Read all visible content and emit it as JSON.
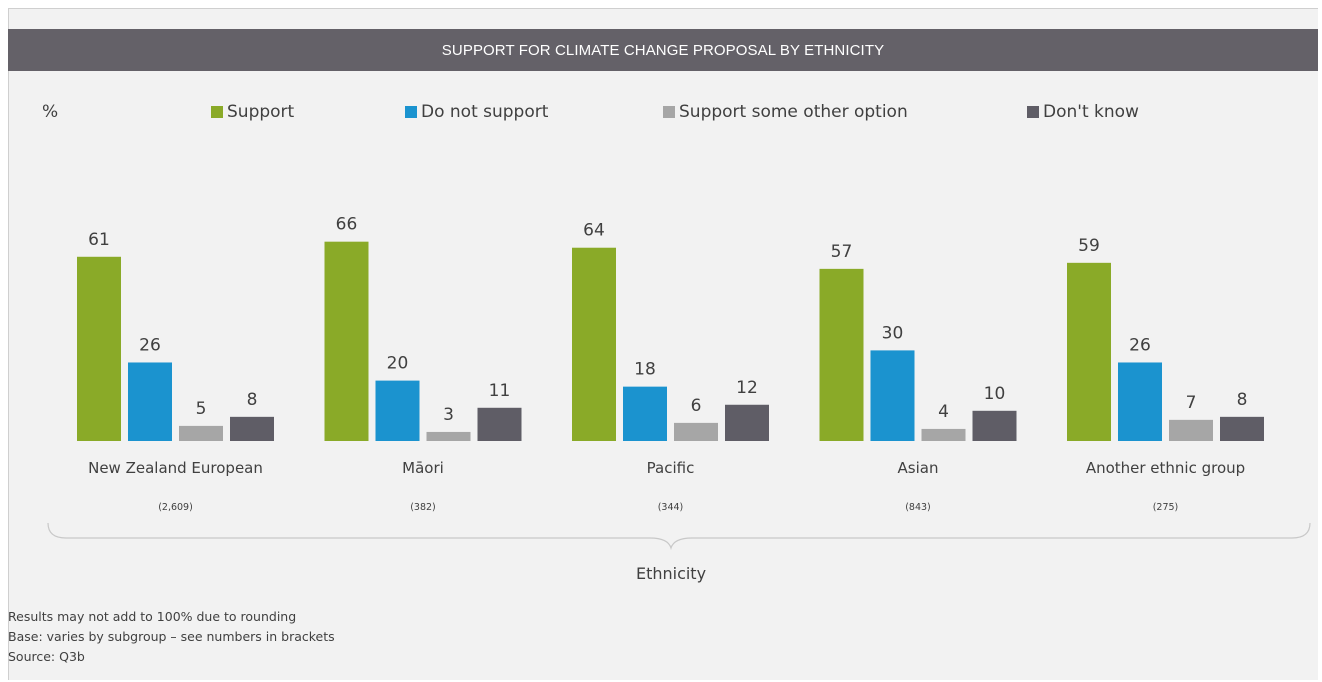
{
  "title": "SUPPORT FOR CLIMATE CHANGE PROPOSAL BY ETHNICITY",
  "unit_label": "%",
  "colors": {
    "support": "#8aaa28",
    "do_not_support": "#1b93cf",
    "other_option": "#a6a6a6",
    "dont_know": "#5f5d66",
    "title_bg": "#646168",
    "panel_bg": "#f2f2f2"
  },
  "chart_data": {
    "type": "bar",
    "title": "SUPPORT FOR CLIMATE CHANGE PROPOSAL BY ETHNICITY",
    "xlabel": "Ethnicity",
    "ylabel": "%",
    "ylim": [
      0,
      70
    ],
    "grid": false,
    "legend_placement": "top",
    "categories": [
      "New Zealand European",
      "Māori",
      "Pacific",
      "Asian",
      "Another ethnic group"
    ],
    "base_sizes": [
      "(2,609)",
      "(382)",
      "(344)",
      "(843)",
      "(275)"
    ],
    "series": [
      {
        "name": "Support",
        "color": "#8aaa28",
        "values": [
          61,
          66,
          64,
          57,
          59
        ]
      },
      {
        "name": "Do not support",
        "color": "#1b93cf",
        "values": [
          26,
          20,
          18,
          30,
          26
        ]
      },
      {
        "name": "Support some other option",
        "color": "#a6a6a6",
        "values": [
          5,
          3,
          6,
          4,
          7
        ]
      },
      {
        "name": "Don't know",
        "color": "#5f5d66",
        "values": [
          8,
          11,
          12,
          10,
          8
        ]
      }
    ]
  },
  "footnotes": {
    "rounding": "Results may not add to 100% due to rounding",
    "base": "Base: varies by subgroup – see numbers in brackets",
    "source": "Source: Q3b"
  }
}
